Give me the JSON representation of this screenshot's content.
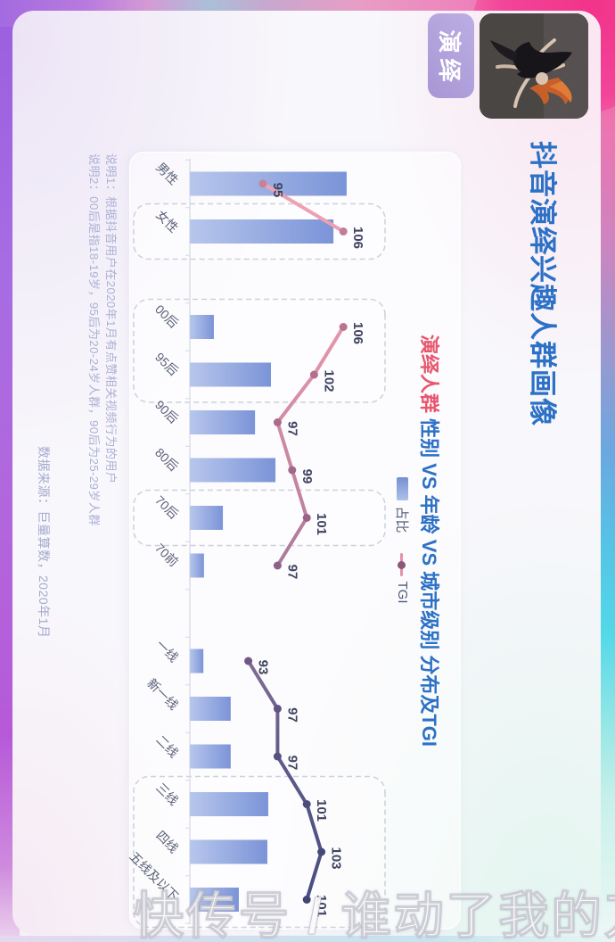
{
  "page": {
    "tag_label": "演绎",
    "title": "抖音演绎兴趣人群画像",
    "subtitle_highlight": "演绎人群",
    "subtitle_rest": " 性别 VS 年龄 VS 城市级别 分布及TGI",
    "legend": {
      "bar_label": "占比",
      "line_label": "TGI"
    },
    "notes_line1": "说明1：根据抖音用户在2020年1月有点赞相关视频行为的用户",
    "notes_line2": "说明2：00后是指18-19岁，95后为20-24岁人群，90后为25-29岁人群",
    "source": "数据来源：巨量算数，2020年1月",
    "watermark": "快传号 / 谁动了我的刀"
  },
  "colors": {
    "title_blue": "#2d71c6",
    "subtitle_rose": "#e8566e",
    "bar_top": "#7b94d8",
    "bar_bottom": "#b7c6ec",
    "line_start_pink": "#f0a6b6",
    "line_end_indigo": "#464b7e",
    "tgi_label": "#3e4360",
    "category_label": "#5b6278",
    "axis": "#d5d9e4",
    "dashed_box": "#cdd1da",
    "tag_purple": "#a796d4",
    "corner_magenta": "#f2458e"
  },
  "chart_data": {
    "type": "bar",
    "title": "演绎人群 性别 VS 年龄 VS 城市级别 分布及TGI",
    "legend_position": "top",
    "grid": false,
    "series": [
      {
        "name": "占比",
        "type": "bar",
        "unit": "% (axis unlabeled, estimated from bar lengths)"
      },
      {
        "name": "TGI",
        "type": "line"
      }
    ],
    "groups": [
      {
        "name": "性别",
        "categories": [
          "男性",
          "女性"
        ],
        "share_pct_est": [
          52.2,
          47.8
        ],
        "tgi": [
          95,
          106
        ]
      },
      {
        "name": "年龄",
        "categories": [
          "00后",
          "95后",
          "90后",
          "80后",
          "70后",
          "70前"
        ],
        "share_pct_est": [
          8.0,
          27.0,
          21.7,
          28.5,
          11.0,
          4.7
        ],
        "tgi": [
          106,
          102,
          97,
          99,
          101,
          97
        ]
      },
      {
        "name": "城市级别",
        "categories": [
          "一线",
          "新一线",
          "二线",
          "三线",
          "四线",
          "五线及以下"
        ],
        "share_pct_est": [
          4.5,
          13.6,
          13.6,
          26.1,
          25.8,
          16.3
        ],
        "tgi": [
          93,
          97,
          97,
          101,
          103,
          101
        ]
      }
    ],
    "highlights": [
      [
        "女性"
      ],
      [
        "00后",
        "95后"
      ],
      [
        "70后"
      ],
      [
        "三线",
        "四线",
        "五线及以下"
      ]
    ]
  }
}
